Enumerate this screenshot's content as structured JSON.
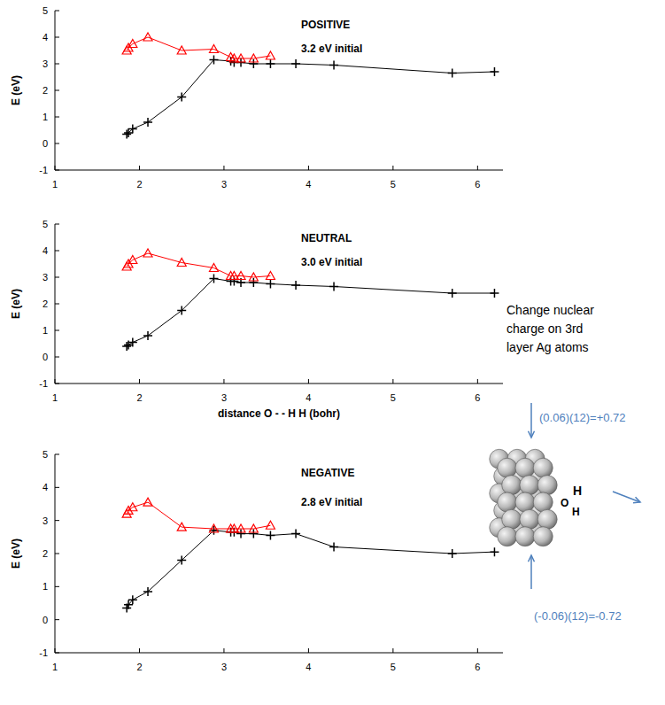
{
  "chart_data": [
    {
      "type": "line",
      "title": "POSITIVE",
      "subtitle": "3.2 eV initial",
      "y_label": "E (eV)",
      "x": [
        1.85,
        1.87,
        1.92,
        2.1,
        2.5,
        2.88,
        3.08,
        3.12,
        3.2,
        3.35,
        3.55,
        3.85,
        4.3,
        5.7,
        6.2
      ],
      "series": [
        {
          "color": "#000000",
          "marker": "plus",
          "line_style": "solid",
          "values": [
            0.35,
            0.4,
            0.55,
            0.8,
            1.75,
            3.15,
            3.1,
            3.05,
            3.05,
            3.0,
            3.0,
            3.0,
            2.95,
            2.65,
            2.7
          ]
        },
        {
          "color": "#ff0000",
          "marker": "triangle",
          "line_style": "solid",
          "values": [
            3.5,
            3.6,
            3.75,
            4.0,
            3.5,
            3.55,
            3.25,
            3.2,
            3.2,
            3.2,
            3.3,
            null,
            null,
            null,
            null
          ]
        }
      ],
      "xlim": [
        1,
        6.3
      ],
      "ylim": [
        -1,
        5
      ],
      "xticks": [
        1,
        2,
        3,
        4,
        5,
        6
      ],
      "yticks": [
        -1,
        0,
        1,
        2,
        3,
        4,
        5
      ],
      "grid": false
    },
    {
      "type": "line",
      "title": "NEUTRAL",
      "subtitle": "3.0 eV  initial",
      "y_label": "E (eV)",
      "x_label": "distance  O - - H H  (bohr)",
      "x": [
        1.85,
        1.87,
        1.92,
        2.1,
        2.5,
        2.88,
        3.08,
        3.12,
        3.2,
        3.35,
        3.55,
        3.85,
        4.3,
        5.7,
        6.2
      ],
      "series": [
        {
          "color": "#000000",
          "marker": "plus",
          "line_style": "solid",
          "values": [
            0.4,
            0.45,
            0.55,
            0.8,
            1.75,
            2.95,
            2.85,
            2.85,
            2.8,
            2.8,
            2.75,
            2.7,
            2.65,
            2.4,
            2.4
          ]
        },
        {
          "color": "#ff0000",
          "marker": "triangle",
          "line_style": "solid",
          "values": [
            3.4,
            3.5,
            3.65,
            3.9,
            3.55,
            3.35,
            3.05,
            3.05,
            3.05,
            3.0,
            3.05,
            null,
            null,
            null,
            null
          ]
        }
      ],
      "xlim": [
        1,
        6.3
      ],
      "ylim": [
        -1,
        5
      ],
      "xticks": [
        1,
        2,
        3,
        4,
        5,
        6
      ],
      "yticks": [
        -1,
        0,
        1,
        2,
        3,
        4,
        5
      ],
      "grid": false
    },
    {
      "type": "line",
      "title": "NEGATIVE",
      "subtitle": "2.8 eV initial",
      "y_label": "E (eV)",
      "x": [
        1.85,
        1.87,
        1.92,
        2.1,
        2.5,
        2.88,
        3.08,
        3.12,
        3.2,
        3.35,
        3.55,
        3.85,
        4.3,
        5.7,
        6.2
      ],
      "series": [
        {
          "color": "#000000",
          "marker": "plus",
          "line_style": "solid",
          "values": [
            0.35,
            0.45,
            0.6,
            0.85,
            1.8,
            2.7,
            2.65,
            2.65,
            2.6,
            2.6,
            2.55,
            2.6,
            2.2,
            2.0,
            2.05
          ]
        },
        {
          "color": "#ff0000",
          "marker": "triangle",
          "line_style": "solid",
          "values": [
            3.2,
            3.3,
            3.4,
            3.55,
            2.8,
            2.75,
            2.75,
            2.75,
            2.75,
            2.75,
            2.85,
            null,
            null,
            null,
            null
          ]
        }
      ],
      "xlim": [
        1,
        6.3
      ],
      "ylim": [
        -1,
        5
      ],
      "xticks": [
        1,
        2,
        3,
        4,
        5,
        6
      ],
      "yticks": [
        -1,
        0,
        1,
        2,
        3,
        4,
        5
      ],
      "grid": false
    }
  ],
  "diagram": {
    "caption_lines": [
      "Change nuclear",
      "charge on 3rd",
      "layer Ag atoms"
    ],
    "top_label": "(0.06)(12)=+0.72",
    "bottom_label": "(-0.06)(12)=-0.72",
    "atoms": [
      "O",
      "H",
      "H"
    ],
    "color": "#4f81bd"
  }
}
